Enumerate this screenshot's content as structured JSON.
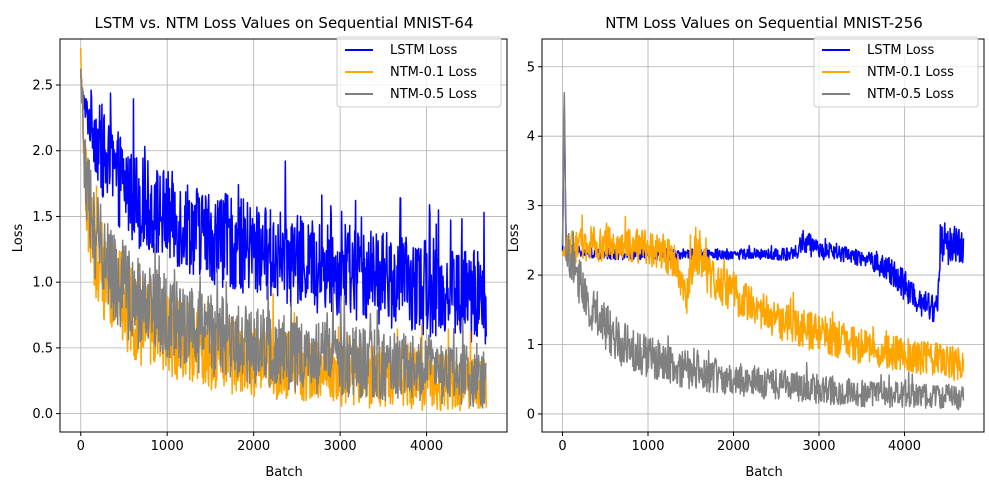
{
  "chart_data": [
    {
      "type": "line",
      "title": "LSTM vs. NTM Loss Values on Sequential MNIST-64",
      "xlabel": "Batch",
      "ylabel": "Loss",
      "xlim": [
        -240,
        4930
      ],
      "ylim": [
        -0.14,
        2.85
      ],
      "xticks": [
        0,
        1000,
        2000,
        3000,
        4000
      ],
      "xtick_labels": [
        "0",
        "1000",
        "2000",
        "3000",
        "4000"
      ],
      "yticks": [
        0.0,
        0.5,
        1.0,
        1.5,
        2.0,
        2.5
      ],
      "ytick_labels": [
        "0.0",
        "0.5",
        "1.0",
        "1.5",
        "2.0",
        "2.5"
      ],
      "grid": true,
      "legend_position": "top-right",
      "series": [
        {
          "name": "LSTM Loss",
          "color": "#0000ff",
          "x": [
            0,
            50,
            100,
            150,
            200,
            300,
            400,
            500,
            700,
            1000,
            1500,
            2000,
            2500,
            3000,
            3500,
            4000,
            4500,
            4690
          ],
          "y": [
            2.55,
            2.3,
            2.25,
            2.2,
            2.05,
            1.9,
            1.8,
            1.75,
            1.6,
            1.5,
            1.35,
            1.25,
            1.15,
            1.1,
            1.02,
            0.95,
            0.9,
            0.88
          ],
          "spread": [
            0.05,
            0.12,
            0.2,
            0.3,
            0.32,
            0.35,
            0.36,
            0.36,
            0.36,
            0.36,
            0.36,
            0.36,
            0.36,
            0.36,
            0.36,
            0.36,
            0.36,
            0.36
          ]
        },
        {
          "name": "NTM-0.1 Loss",
          "color": "#ffa500",
          "x": [
            0,
            50,
            100,
            150,
            200,
            300,
            400,
            500,
            700,
            1000,
            1500,
            2000,
            2500,
            3000,
            3500,
            4000,
            4500,
            4690
          ],
          "y": [
            2.7,
            1.8,
            1.5,
            1.3,
            1.2,
            1.05,
            0.95,
            0.85,
            0.7,
            0.6,
            0.48,
            0.4,
            0.35,
            0.3,
            0.27,
            0.25,
            0.22,
            0.2
          ],
          "spread": [
            0.05,
            0.3,
            0.35,
            0.38,
            0.38,
            0.38,
            0.38,
            0.36,
            0.34,
            0.32,
            0.3,
            0.28,
            0.26,
            0.25,
            0.24,
            0.23,
            0.22,
            0.22
          ]
        },
        {
          "name": "NTM-0.5 Loss",
          "color": "#808080",
          "x": [
            0,
            50,
            100,
            150,
            200,
            300,
            400,
            500,
            700,
            1000,
            1500,
            2000,
            2500,
            3000,
            3500,
            4000,
            4500,
            4690
          ],
          "y": [
            2.6,
            1.8,
            1.6,
            1.4,
            1.3,
            1.15,
            1.05,
            0.95,
            0.82,
            0.72,
            0.6,
            0.52,
            0.45,
            0.4,
            0.37,
            0.34,
            0.3,
            0.28
          ],
          "spread": [
            0.05,
            0.25,
            0.3,
            0.34,
            0.35,
            0.36,
            0.36,
            0.36,
            0.35,
            0.34,
            0.32,
            0.3,
            0.29,
            0.28,
            0.27,
            0.26,
            0.25,
            0.25
          ]
        }
      ]
    },
    {
      "type": "line",
      "title": "NTM Loss Values on Sequential MNIST-256",
      "xlabel": "Batch",
      "ylabel": "Loss",
      "xlim": [
        -240,
        4930
      ],
      "ylim": [
        -0.26,
        5.4
      ],
      "xticks": [
        0,
        1000,
        2000,
        3000,
        4000
      ],
      "xtick_labels": [
        "0",
        "1000",
        "2000",
        "3000",
        "4000"
      ],
      "yticks": [
        0,
        1,
        2,
        3,
        4,
        5
      ],
      "ytick_labels": [
        "0",
        "1",
        "2",
        "3",
        "4",
        "5"
      ],
      "grid": true,
      "legend_position": "top-right",
      "series": [
        {
          "name": "LSTM Loss",
          "color": "#0000ff",
          "x": [
            0,
            20,
            40,
            100,
            500,
            1000,
            1500,
            2000,
            2500,
            2750,
            2800,
            3000,
            3500,
            3800,
            4000,
            4200,
            4380,
            4420,
            4500,
            4690
          ],
          "y": [
            2.3,
            4.5,
            2.5,
            2.35,
            2.3,
            2.3,
            2.3,
            2.3,
            2.3,
            2.3,
            2.5,
            2.35,
            2.25,
            2.1,
            1.85,
            1.6,
            1.5,
            2.5,
            2.45,
            2.4
          ],
          "spread": [
            0.05,
            0.05,
            0.1,
            0.08,
            0.08,
            0.08,
            0.08,
            0.08,
            0.08,
            0.1,
            0.2,
            0.12,
            0.12,
            0.18,
            0.22,
            0.22,
            0.2,
            0.3,
            0.3,
            0.25
          ]
        },
        {
          "name": "NTM-0.1 Loss",
          "color": "#ffa500",
          "x": [
            0,
            100,
            300,
            500,
            1000,
            1300,
            1450,
            1550,
            1700,
            2000,
            2500,
            3000,
            3500,
            4000,
            4500,
            4690
          ],
          "y": [
            2.3,
            2.4,
            2.45,
            2.45,
            2.4,
            2.25,
            1.7,
            2.4,
            2.0,
            1.75,
            1.35,
            1.15,
            0.98,
            0.85,
            0.75,
            0.7
          ],
          "spread": [
            0.1,
            0.25,
            0.25,
            0.25,
            0.25,
            0.3,
            0.3,
            0.35,
            0.3,
            0.3,
            0.28,
            0.28,
            0.26,
            0.25,
            0.25,
            0.25
          ]
        },
        {
          "name": "NTM-0.5 Loss",
          "color": "#808080",
          "x": [
            0,
            20,
            40,
            100,
            200,
            300,
            500,
            700,
            1000,
            1500,
            2000,
            2500,
            3000,
            3500,
            4000,
            4500,
            4690
          ],
          "y": [
            2.4,
            4.8,
            2.4,
            2.2,
            1.9,
            1.6,
            1.25,
            1.0,
            0.82,
            0.62,
            0.5,
            0.42,
            0.36,
            0.3,
            0.28,
            0.25,
            0.22
          ],
          "spread": [
            0.05,
            0.1,
            0.2,
            0.3,
            0.35,
            0.35,
            0.35,
            0.33,
            0.3,
            0.27,
            0.25,
            0.23,
            0.21,
            0.2,
            0.19,
            0.18,
            0.18
          ]
        }
      ]
    }
  ]
}
